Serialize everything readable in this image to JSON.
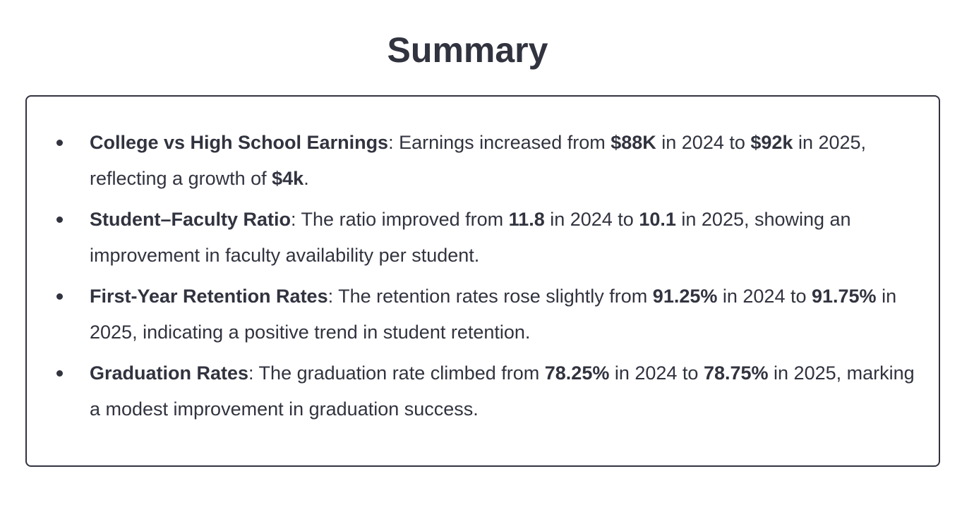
{
  "title": "Summary",
  "items": [
    {
      "heading": "College vs High School Earnings",
      "t1": ": Earnings increased from ",
      "b1": "$88K",
      "t2": " in 2024 to ",
      "b2": "$92k",
      "t3": " in 2025, reflecting a growth of ",
      "b3": "$4k",
      "t4": "."
    },
    {
      "heading": "Student–Faculty Ratio",
      "t1": ": The ratio improved from ",
      "b1": "11.8",
      "t2": " in 2024 to ",
      "b2": "10.1",
      "t3": " in 2025, showing an improvement in faculty availability per student."
    },
    {
      "heading": "First-Year Retention Rates",
      "t1": ": The retention rates rose slightly from ",
      "b1": "91.25%",
      "t2": " in 2024 to ",
      "b2": "91.75%",
      "t3": " in 2025, indicating a positive trend in student retention."
    },
    {
      "heading": "Graduation Rates",
      "t1": ": The graduation rate climbed from ",
      "b1": "78.25%",
      "t2": " in 2024 to ",
      "b2": "78.75%",
      "t3": " in 2025, marking a modest improvement in graduation success."
    }
  ]
}
